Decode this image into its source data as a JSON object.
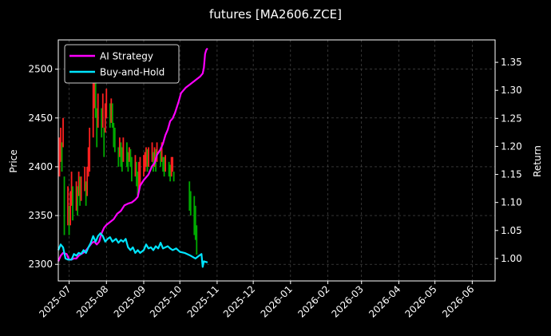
{
  "chart_data": {
    "type": "line",
    "title": "futures [MA2606.ZCE]",
    "ylabel_left": "Price",
    "ylabel_right": "Return",
    "xlabel": "",
    "grid": true,
    "legend_position": "top-left",
    "background": "#000000",
    "x_ticks": [
      "2025-07",
      "2025-08",
      "2025-09",
      "2025-10",
      "2025-11",
      "2025-12",
      "2026-01",
      "2026-02",
      "2026-03",
      "2026-04",
      "2026-05",
      "2026-06"
    ],
    "xlim": [
      "2025-06-22",
      "2026-06-20"
    ],
    "y_left": {
      "label": "Price",
      "ylim": [
        2283,
        2530
      ],
      "ticks": [
        2300,
        2350,
        2400,
        2450,
        2500
      ]
    },
    "y_right": {
      "label": "Return",
      "ylim": [
        0.96,
        1.39
      ],
      "ticks": [
        1.0,
        1.05,
        1.1,
        1.15,
        1.2,
        1.25,
        1.3,
        1.35
      ]
    },
    "candles_daily": {
      "up_color": "#00aa00",
      "down_color": "#ff2020",
      "bars": [
        [
          "2025-06-23",
          2390,
          2430
        ],
        [
          "2025-06-24",
          2405,
          2440
        ],
        [
          "2025-06-25",
          2395,
          2425
        ],
        [
          "2025-06-26",
          2420,
          2450
        ],
        [
          "2025-06-27",
          2330,
          2390
        ],
        [
          "2025-06-30",
          2340,
          2380
        ],
        [
          "2025-07-01",
          2330,
          2360
        ],
        [
          "2025-07-02",
          2340,
          2375
        ],
        [
          "2025-07-03",
          2360,
          2395
        ],
        [
          "2025-07-04",
          2345,
          2380
        ],
        [
          "2025-07-07",
          2355,
          2385
        ],
        [
          "2025-07-08",
          2350,
          2380
        ],
        [
          "2025-07-09",
          2370,
          2395
        ],
        [
          "2025-07-10",
          2360,
          2390
        ],
        [
          "2025-07-11",
          2365,
          2390
        ],
        [
          "2025-07-14",
          2375,
          2400
        ],
        [
          "2025-07-15",
          2360,
          2385
        ],
        [
          "2025-07-16",
          2370,
          2400
        ],
        [
          "2025-07-17",
          2390,
          2420
        ],
        [
          "2025-07-18",
          2395,
          2440
        ],
        [
          "2025-07-21",
          2430,
          2490
        ],
        [
          "2025-07-22",
          2460,
          2500
        ],
        [
          "2025-07-23",
          2450,
          2490
        ],
        [
          "2025-07-24",
          2420,
          2460
        ],
        [
          "2025-07-25",
          2440,
          2475
        ],
        [
          "2025-07-28",
          2430,
          2460
        ],
        [
          "2025-07-29",
          2440,
          2475
        ],
        [
          "2025-07-30",
          2410,
          2440
        ],
        [
          "2025-07-31",
          2435,
          2465
        ],
        [
          "2025-08-01",
          2450,
          2480
        ],
        [
          "2025-08-04",
          2440,
          2465
        ],
        [
          "2025-08-05",
          2445,
          2470
        ],
        [
          "2025-08-06",
          2440,
          2465
        ],
        [
          "2025-08-07",
          2420,
          2445
        ],
        [
          "2025-08-08",
          2415,
          2440
        ],
        [
          "2025-08-11",
          2400,
          2420
        ],
        [
          "2025-08-12",
          2410,
          2430
        ],
        [
          "2025-08-13",
          2400,
          2425
        ],
        [
          "2025-08-14",
          2395,
          2420
        ],
        [
          "2025-08-15",
          2405,
          2430
        ],
        [
          "2025-08-18",
          2400,
          2425
        ],
        [
          "2025-08-19",
          2395,
          2415
        ],
        [
          "2025-08-20",
          2405,
          2420
        ],
        [
          "2025-08-21",
          2400,
          2418
        ],
        [
          "2025-08-22",
          2385,
          2410
        ],
        [
          "2025-08-25",
          2390,
          2412
        ],
        [
          "2025-08-26",
          2380,
          2405
        ],
        [
          "2025-08-27",
          2370,
          2395
        ],
        [
          "2025-08-28",
          2375,
          2405
        ],
        [
          "2025-08-29",
          2380,
          2410
        ],
        [
          "2025-09-01",
          2390,
          2412
        ],
        [
          "2025-09-02",
          2395,
          2415
        ],
        [
          "2025-09-03",
          2400,
          2420
        ],
        [
          "2025-09-04",
          2395,
          2418
        ],
        [
          "2025-09-05",
          2400,
          2420
        ],
        [
          "2025-09-08",
          2405,
          2425
        ],
        [
          "2025-09-09",
          2395,
          2415
        ],
        [
          "2025-09-10",
          2400,
          2420
        ],
        [
          "2025-09-11",
          2395,
          2418
        ],
        [
          "2025-09-12",
          2405,
          2425
        ],
        [
          "2025-09-15",
          2400,
          2420
        ],
        [
          "2025-09-16",
          2405,
          2425
        ],
        [
          "2025-09-17",
          2395,
          2410
        ],
        [
          "2025-09-18",
          2390,
          2410
        ],
        [
          "2025-09-19",
          2395,
          2412
        ],
        [
          "2025-09-22",
          2390,
          2405
        ],
        [
          "2025-09-23",
          2385,
          2402
        ],
        [
          "2025-09-24",
          2390,
          2410
        ],
        [
          "2025-09-25",
          2395,
          2410
        ],
        [
          "2025-09-26",
          2385,
          2395
        ],
        [
          "2025-10-09",
          2355,
          2385
        ],
        [
          "2025-10-10",
          2350,
          2375
        ],
        [
          "2025-10-13",
          2330,
          2370
        ],
        [
          "2025-10-14",
          2325,
          2360
        ],
        [
          "2025-10-15",
          2310,
          2340
        ]
      ]
    },
    "series": [
      {
        "name": "AI Strategy",
        "axis": "right",
        "color": "#ff00ff",
        "points": [
          [
            "2025-06-22",
            0.995
          ],
          [
            "2025-06-24",
            1.005
          ],
          [
            "2025-06-26",
            1.01
          ],
          [
            "2025-06-29",
            1.008
          ],
          [
            "2025-07-01",
            0.998
          ],
          [
            "2025-07-03",
            0.998
          ],
          [
            "2025-07-05",
            1.0
          ],
          [
            "2025-07-07",
            1.0
          ],
          [
            "2025-07-09",
            1.005
          ],
          [
            "2025-07-11",
            1.008
          ],
          [
            "2025-07-14",
            1.012
          ],
          [
            "2025-07-17",
            1.02
          ],
          [
            "2025-07-20",
            1.028
          ],
          [
            "2025-07-22",
            1.03
          ],
          [
            "2025-07-24",
            1.025
          ],
          [
            "2025-07-26",
            1.03
          ],
          [
            "2025-07-28",
            1.045
          ],
          [
            "2025-07-30",
            1.055
          ],
          [
            "2025-08-01",
            1.06
          ],
          [
            "2025-08-04",
            1.065
          ],
          [
            "2025-08-07",
            1.07
          ],
          [
            "2025-08-10",
            1.08
          ],
          [
            "2025-08-13",
            1.085
          ],
          [
            "2025-08-16",
            1.095
          ],
          [
            "2025-08-19",
            1.098
          ],
          [
            "2025-08-22",
            1.1
          ],
          [
            "2025-08-25",
            1.105
          ],
          [
            "2025-08-27",
            1.11
          ],
          [
            "2025-08-29",
            1.13
          ],
          [
            "2025-09-01",
            1.14
          ],
          [
            "2025-09-03",
            1.145
          ],
          [
            "2025-09-05",
            1.15
          ],
          [
            "2025-09-08",
            1.165
          ],
          [
            "2025-09-10",
            1.17
          ],
          [
            "2025-09-12",
            1.185
          ],
          [
            "2025-09-15",
            1.195
          ],
          [
            "2025-09-17",
            1.205
          ],
          [
            "2025-09-19",
            1.22
          ],
          [
            "2025-09-21",
            1.23
          ],
          [
            "2025-09-23",
            1.245
          ],
          [
            "2025-09-25",
            1.25
          ],
          [
            "2025-09-27",
            1.26
          ],
          [
            "2025-09-30",
            1.28
          ],
          [
            "2025-10-02",
            1.295
          ],
          [
            "2025-10-04",
            1.3
          ],
          [
            "2025-10-06",
            1.305
          ],
          [
            "2025-10-09",
            1.31
          ],
          [
            "2025-10-12",
            1.315
          ],
          [
            "2025-10-15",
            1.32
          ],
          [
            "2025-10-18",
            1.325
          ],
          [
            "2025-10-20",
            1.33
          ],
          [
            "2025-10-21",
            1.34
          ],
          [
            "2025-10-22",
            1.365
          ],
          [
            "2025-10-23",
            1.372
          ],
          [
            "2025-10-24",
            1.375
          ]
        ]
      },
      {
        "name": "Buy-and-Hold",
        "axis": "right",
        "color": "#00e5ff",
        "points": [
          [
            "2025-06-22",
            1.015
          ],
          [
            "2025-06-24",
            1.025
          ],
          [
            "2025-06-26",
            1.02
          ],
          [
            "2025-06-28",
            1.0
          ],
          [
            "2025-06-30",
            0.998
          ],
          [
            "2025-07-03",
            0.998
          ],
          [
            "2025-07-05",
            1.008
          ],
          [
            "2025-07-07",
            1.005
          ],
          [
            "2025-07-09",
            1.01
          ],
          [
            "2025-07-11",
            1.008
          ],
          [
            "2025-07-13",
            1.015
          ],
          [
            "2025-07-15",
            1.01
          ],
          [
            "2025-07-17",
            1.02
          ],
          [
            "2025-07-19",
            1.028
          ],
          [
            "2025-07-21",
            1.04
          ],
          [
            "2025-07-23",
            1.03
          ],
          [
            "2025-07-25",
            1.04
          ],
          [
            "2025-07-27",
            1.045
          ],
          [
            "2025-07-29",
            1.04
          ],
          [
            "2025-07-31",
            1.03
          ],
          [
            "2025-08-02",
            1.035
          ],
          [
            "2025-08-04",
            1.038
          ],
          [
            "2025-08-06",
            1.03
          ],
          [
            "2025-08-09",
            1.035
          ],
          [
            "2025-08-11",
            1.028
          ],
          [
            "2025-08-13",
            1.033
          ],
          [
            "2025-08-15",
            1.03
          ],
          [
            "2025-08-17",
            1.035
          ],
          [
            "2025-08-19",
            1.02
          ],
          [
            "2025-08-21",
            1.015
          ],
          [
            "2025-08-23",
            1.02
          ],
          [
            "2025-08-25",
            1.01
          ],
          [
            "2025-08-27",
            1.015
          ],
          [
            "2025-08-29",
            1.01
          ],
          [
            "2025-09-01",
            1.015
          ],
          [
            "2025-09-03",
            1.025
          ],
          [
            "2025-09-05",
            1.018
          ],
          [
            "2025-09-07",
            1.02
          ],
          [
            "2025-09-09",
            1.015
          ],
          [
            "2025-09-11",
            1.022
          ],
          [
            "2025-09-13",
            1.018
          ],
          [
            "2025-09-15",
            1.028
          ],
          [
            "2025-09-17",
            1.018
          ],
          [
            "2025-09-19",
            1.02
          ],
          [
            "2025-09-21",
            1.022
          ],
          [
            "2025-09-23",
            1.018
          ],
          [
            "2025-09-25",
            1.015
          ],
          [
            "2025-09-28",
            1.018
          ],
          [
            "2025-10-01",
            1.012
          ],
          [
            "2025-10-05",
            1.01
          ],
          [
            "2025-10-10",
            1.005
          ],
          [
            "2025-10-14",
            1.0
          ],
          [
            "2025-10-17",
            1.005
          ],
          [
            "2025-10-19",
            1.008
          ],
          [
            "2025-10-20",
            0.985
          ],
          [
            "2025-10-21",
            0.995
          ],
          [
            "2025-10-24",
            0.993
          ]
        ]
      }
    ]
  }
}
